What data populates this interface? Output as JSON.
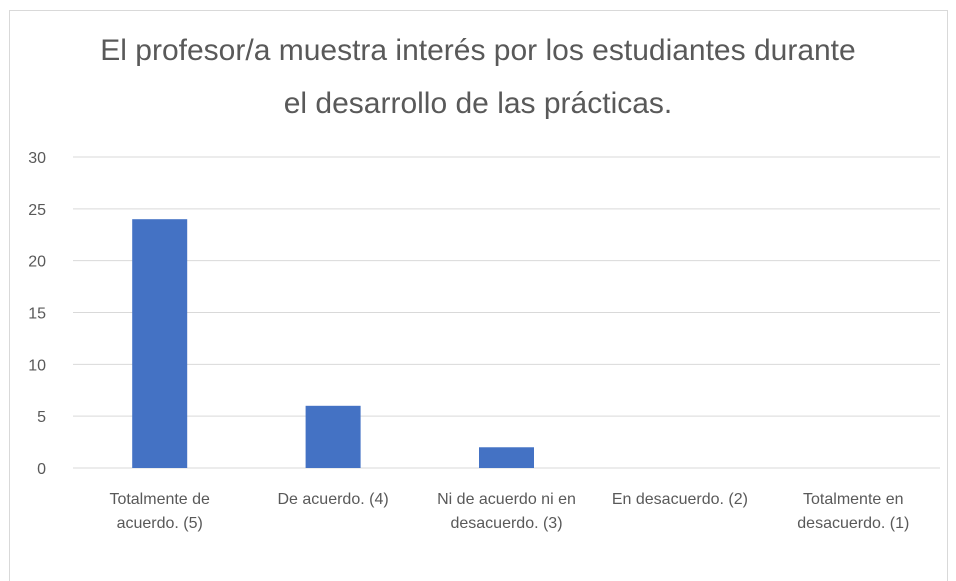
{
  "chart_data": {
    "type": "bar",
    "title": "El profesor/a muestra interés por los estudiantes durante el desarrollo de las prácticas.",
    "categories": [
      "Totalmente de acuerdo. (5)",
      "De acuerdo. (4)",
      "Ni de acuerdo ni en desacuerdo. (3)",
      "En desacuerdo. (2)",
      "Totalmente en desacuerdo. (1)"
    ],
    "values": [
      24,
      6,
      2,
      0,
      0
    ],
    "color": "#4472c4",
    "ylim": [
      0,
      30
    ],
    "yticks": [
      0,
      5,
      10,
      15,
      20,
      25,
      30
    ],
    "grid": true
  }
}
